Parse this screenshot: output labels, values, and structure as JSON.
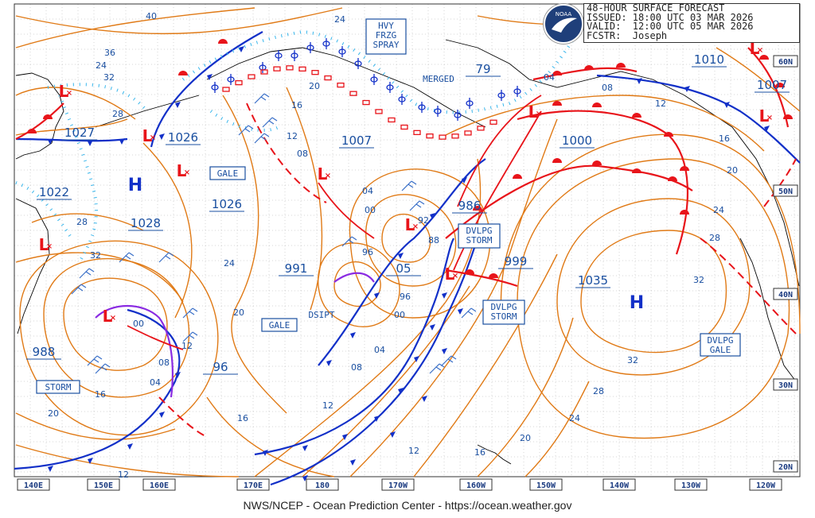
{
  "header": {
    "line1": "48-HOUR SURFACE FORECAST",
    "line2": "ISSUED: 18:00 UTC 03 MAR 2026",
    "line3": "VALID:  12:00 UTC 05 MAR 2026",
    "line4": "FCSTR:  Joseph",
    "logo_text": "NOAA"
  },
  "footer": "NWS/NCEP - Ocean Prediction Center - https://ocean.weather.gov",
  "colors": {
    "isobar": "#e07a16",
    "cold_front": "#1230c8",
    "warm_front": "#e8141a",
    "occluded": "#8a2be2",
    "freezing_spray": "#38b6ec",
    "grid": "#9a9a9a"
  },
  "longitude_labels": [
    "140E",
    "150E",
    "160E",
    "170E",
    "180",
    "170W",
    "160W",
    "150W",
    "140W",
    "130W",
    "120W"
  ],
  "latitude_labels": [
    "60N",
    "50N",
    "40N",
    "30N",
    "20N"
  ],
  "high_labels": [
    "H",
    "H"
  ],
  "low_label": "L",
  "pressures": [
    "1027",
    "1026",
    "1022",
    "1028",
    "1026",
    "1007",
    "1000",
    "986",
    "991",
    "05",
    "999",
    "1035",
    "988",
    "96",
    "1010",
    "1007",
    "79"
  ],
  "isobar_values": [
    "40",
    "36",
    "32",
    "28",
    "24",
    "20",
    "16",
    "12",
    "08",
    "04",
    "00",
    "96",
    "92",
    "88",
    "04",
    "08",
    "12",
    "16",
    "20",
    "24",
    "28",
    "32",
    "24",
    "20",
    "16",
    "12",
    "08",
    "04",
    "00",
    "96",
    "12",
    "08",
    "04",
    "00",
    "24",
    "28",
    "32",
    "16",
    "20",
    "28",
    "24",
    "16",
    "12",
    "20",
    "12",
    "32"
  ],
  "boxes": [
    "HVY\nFRZG\nSPRAY",
    "MERGED",
    "GALE",
    "GALE",
    "DSIPT",
    "DVLPG\nSTORM",
    "DVLPG\nSTORM",
    "DVLPG\nGALE",
    "STORM"
  ]
}
